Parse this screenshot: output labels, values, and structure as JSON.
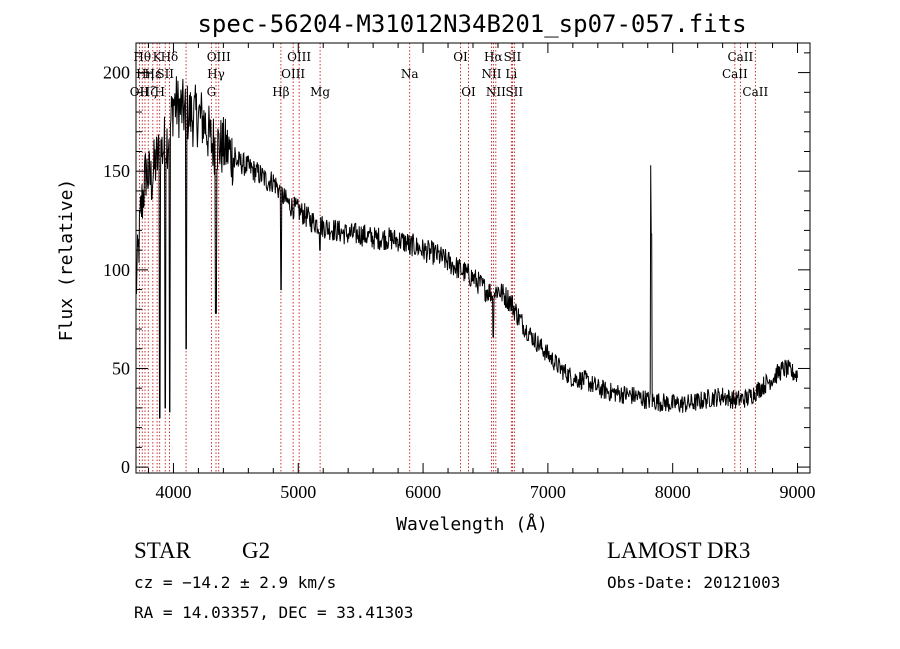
{
  "chart_data": {
    "type": "line",
    "title": "spec-56204-M31012N34B201_sp07-057.fits",
    "xlabel": "Wavelength (Å)",
    "ylabel": "Flux (relative)",
    "xlim": [
      3700,
      9100
    ],
    "ylim": [
      -3,
      215
    ],
    "x_ticks": [
      4000,
      5000,
      6000,
      7000,
      8000,
      9000
    ],
    "x_tick_labels": [
      "4000",
      "5000",
      "6000",
      "7000",
      "8000",
      "9000"
    ],
    "y_ticks": [
      0,
      50,
      100,
      150,
      200
    ],
    "y_tick_labels": [
      "0",
      "50",
      "100",
      "150",
      "200"
    ],
    "grid": false,
    "series": [
      {
        "name": "flux",
        "x": [
          3700,
          3740,
          3780,
          3820,
          3860,
          3900,
          3940,
          3970,
          4000,
          4050,
          4100,
          4150,
          4200,
          4250,
          4300,
          4350,
          4400,
          4450,
          4500,
          4550,
          4600,
          4650,
          4700,
          4750,
          4800,
          4850,
          4900,
          4950,
          5000,
          5050,
          5100,
          5200,
          5300,
          5400,
          5500,
          5600,
          5700,
          5800,
          5900,
          6000,
          6100,
          6200,
          6300,
          6400,
          6500,
          6560,
          6600,
          6700,
          6800,
          6900,
          7000,
          7100,
          7200,
          7300,
          7400,
          7500,
          7600,
          7700,
          7800,
          7900,
          8000,
          8100,
          8200,
          8300,
          8400,
          8500,
          8600,
          8700,
          8800,
          8850,
          8900,
          8950,
          9000
        ],
        "y": [
          90,
          130,
          150,
          145,
          155,
          160,
          165,
          170,
          185,
          182,
          180,
          178,
          178,
          175,
          165,
          163,
          162,
          160,
          155,
          154,
          152,
          150,
          148,
          145,
          145,
          140,
          135,
          132,
          130,
          128,
          125,
          122,
          120,
          118,
          118,
          116,
          116,
          115,
          113,
          110,
          108,
          104,
          100,
          96,
          90,
          88,
          90,
          84,
          72,
          64,
          57,
          50,
          45,
          44,
          40,
          38,
          37,
          36,
          34,
          33,
          32,
          32,
          33,
          35,
          36,
          34,
          35,
          40,
          45,
          48,
          50,
          48,
          47
        ]
      }
    ],
    "emission_spikes": [
      {
        "x": 7825,
        "y": 153
      },
      {
        "x": 7830,
        "y": 118
      }
    ],
    "absorption_dips": [
      {
        "x": 3890,
        "y": 25
      },
      {
        "x": 3934,
        "y": 30
      },
      {
        "x": 3969,
        "y": 28
      },
      {
        "x": 4102,
        "y": 60
      },
      {
        "x": 4340,
        "y": 78
      },
      {
        "x": 4861,
        "y": 90
      },
      {
        "x": 5175,
        "y": 110
      },
      {
        "x": 5893,
        "y": 108
      },
      {
        "x": 6563,
        "y": 66
      }
    ],
    "line_markers": [
      {
        "x": 3727,
        "label": "OII",
        "row": 3
      },
      {
        "x": 3750,
        "label": "Hθ",
        "row": 1
      },
      {
        "x": 3772,
        "label": "Hη",
        "row": 2
      },
      {
        "x": 3798,
        "label": "Hζ",
        "row": 3
      },
      {
        "x": 3835,
        "label": "Hε",
        "row": 2
      },
      {
        "x": 3869,
        "label": "K",
        "row": 1
      },
      {
        "x": 3890,
        "label": "H",
        "row": 3
      },
      {
        "x": 3934,
        "label": "SII",
        "row": 2
      },
      {
        "x": 3968,
        "label": "Hδ",
        "row": 1
      },
      {
        "x": 4101,
        "label": "",
        "row": 2
      },
      {
        "x": 4304,
        "label": "G",
        "row": 3
      },
      {
        "x": 4341,
        "label": "Hγ",
        "row": 2
      },
      {
        "x": 4363,
        "label": "OIII",
        "row": 1
      },
      {
        "x": 4861,
        "label": "Hβ",
        "row": 3
      },
      {
        "x": 4959,
        "label": "OIII",
        "row": 2
      },
      {
        "x": 5007,
        "label": "OIII",
        "row": 1
      },
      {
        "x": 5175,
        "label": "Mg",
        "row": 3
      },
      {
        "x": 5893,
        "label": "Na",
        "row": 2
      },
      {
        "x": 6300,
        "label": "OI",
        "row": 1
      },
      {
        "x": 6364,
        "label": "OI",
        "row": 3
      },
      {
        "x": 6548,
        "label": "NII",
        "row": 2
      },
      {
        "x": 6563,
        "label": "Hα",
        "row": 1
      },
      {
        "x": 6583,
        "label": "NII",
        "row": 3
      },
      {
        "x": 6707,
        "label": "Li",
        "row": 2
      },
      {
        "x": 6716,
        "label": "SII",
        "row": 1
      },
      {
        "x": 6731,
        "label": "SII",
        "row": 3
      },
      {
        "x": 8498,
        "label": "CaII",
        "row": 2
      },
      {
        "x": 8542,
        "label": "CaII",
        "row": 1
      },
      {
        "x": 8662,
        "label": "CaII",
        "row": 3
      }
    ],
    "marker_color": "#c00000",
    "line_color": "#000000"
  },
  "info": {
    "object_class": "STAR",
    "subclass": "G2",
    "survey": "LAMOST DR3",
    "redshift": "cz = −14.2 ± 2.9 km/s",
    "obs_date": "Obs-Date: 20121003",
    "coords": "RA =  14.03357, DEC =  33.41303"
  }
}
